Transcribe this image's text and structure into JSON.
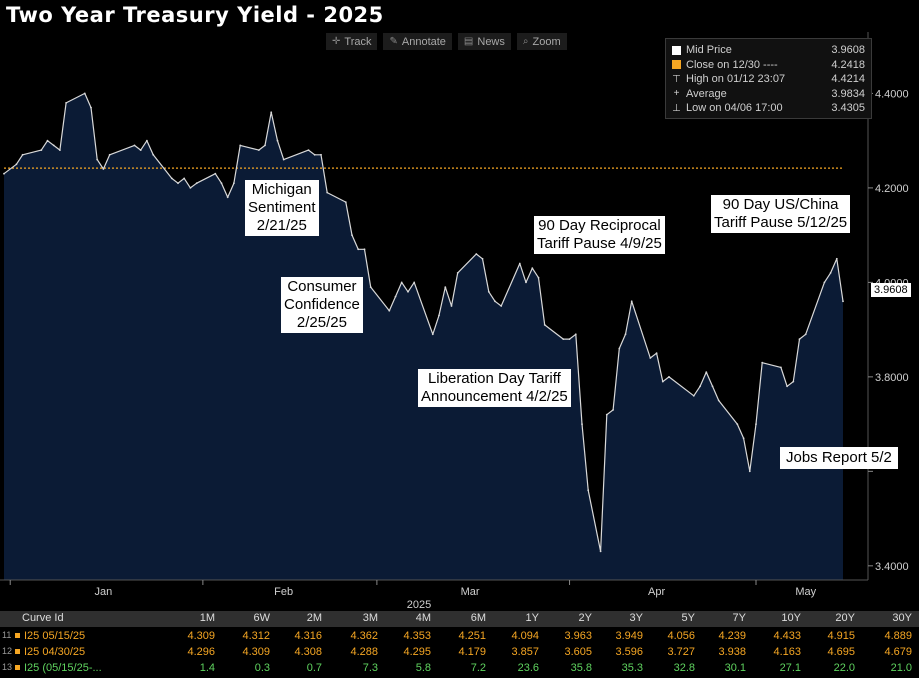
{
  "title": "Two Year Treasury Yield - 2025",
  "toolbar": [
    {
      "label": "Track",
      "icon": "crosshair-icon",
      "glyph": "✛"
    },
    {
      "label": "Annotate",
      "icon": "pencil-icon",
      "glyph": "✎"
    },
    {
      "label": "News",
      "icon": "news-icon",
      "glyph": "▤"
    },
    {
      "label": "Zoom",
      "icon": "magnifier-icon",
      "glyph": "⌕"
    }
  ],
  "legend": [
    {
      "label": "Mid Price",
      "value": "3.9608",
      "color": "#ffffff",
      "marker": "box"
    },
    {
      "label": "Close on 12/30 ----",
      "value": "4.2418",
      "color": "#f5a623",
      "marker": "box"
    },
    {
      "label": "High on 01/12 23:07",
      "value": "4.4214",
      "color": "#cfcfcf",
      "marker": "high"
    },
    {
      "label": "Average",
      "value": "3.9834",
      "color": "#cfcfcf",
      "marker": "avg"
    },
    {
      "label": "Low on 04/06 17:00",
      "value": "3.4305",
      "color": "#cfcfcf",
      "marker": "low"
    }
  ],
  "last_value_badge": "3.9608",
  "annotations": [
    {
      "id": "michigan",
      "lines": [
        "Michigan",
        "Sentiment",
        "2/21/25"
      ]
    },
    {
      "id": "consumer",
      "lines": [
        "Consumer",
        "Confidence",
        "2/25/25"
      ]
    },
    {
      "id": "liberation",
      "lines": [
        "Liberation Day Tariff",
        "Announcement 4/2/25"
      ]
    },
    {
      "id": "reciprocal",
      "lines": [
        "90 Day Reciprocal",
        "Tariff Pause 4/9/25"
      ]
    },
    {
      "id": "uschina",
      "lines": [
        "90 Day US/China",
        "Tariff Pause 5/12/25"
      ]
    },
    {
      "id": "jobs",
      "lines": [
        "Jobs Report 5/2"
      ]
    }
  ],
  "chart_data": {
    "type": "area",
    "title": "Two Year Treasury Yield - 2025",
    "x_label": "2025",
    "x_ticks": [
      "Jan",
      "Feb",
      "Mar",
      "Apr",
      "May"
    ],
    "y_ticks": [
      "4.4000",
      "4.2000",
      "4.0000",
      "3.8000",
      "3.4000"
    ],
    "y_unlabeled_ticks": [
      3.6
    ],
    "ylim": [
      3.37,
      4.53
    ],
    "reference_line": {
      "label": "Close on 12/30",
      "value": 4.2418,
      "color": "#f5a623"
    },
    "colors": {
      "fill": "#0b1b35",
      "line": "#d9d9d9"
    },
    "grid": false,
    "legend_position": "top-right",
    "series": [
      {
        "name": "Mid Price",
        "points": [
          [
            "2024-12-31",
            4.23
          ],
          [
            "2025-01-02",
            4.25
          ],
          [
            "2025-01-03",
            4.27
          ],
          [
            "2025-01-06",
            4.28
          ],
          [
            "2025-01-07",
            4.3
          ],
          [
            "2025-01-08",
            4.29
          ],
          [
            "2025-01-09",
            4.28
          ],
          [
            "2025-01-10",
            4.38
          ],
          [
            "2025-01-13",
            4.4
          ],
          [
            "2025-01-14",
            4.37
          ],
          [
            "2025-01-15",
            4.26
          ],
          [
            "2025-01-16",
            4.24
          ],
          [
            "2025-01-17",
            4.27
          ],
          [
            "2025-01-21",
            4.29
          ],
          [
            "2025-01-22",
            4.28
          ],
          [
            "2025-01-23",
            4.3
          ],
          [
            "2025-01-24",
            4.27
          ],
          [
            "2025-01-27",
            4.22
          ],
          [
            "2025-01-28",
            4.21
          ],
          [
            "2025-01-29",
            4.22
          ],
          [
            "2025-01-30",
            4.2
          ],
          [
            "2025-01-31",
            4.21
          ],
          [
            "2025-02-03",
            4.23
          ],
          [
            "2025-02-04",
            4.21
          ],
          [
            "2025-02-05",
            4.18
          ],
          [
            "2025-02-06",
            4.21
          ],
          [
            "2025-02-07",
            4.29
          ],
          [
            "2025-02-10",
            4.28
          ],
          [
            "2025-02-11",
            4.29
          ],
          [
            "2025-02-12",
            4.36
          ],
          [
            "2025-02-13",
            4.3
          ],
          [
            "2025-02-14",
            4.26
          ],
          [
            "2025-02-18",
            4.28
          ],
          [
            "2025-02-19",
            4.27
          ],
          [
            "2025-02-20",
            4.27
          ],
          [
            "2025-02-21",
            4.19
          ],
          [
            "2025-02-24",
            4.17
          ],
          [
            "2025-02-25",
            4.1
          ],
          [
            "2025-02-26",
            4.07
          ],
          [
            "2025-02-27",
            4.07
          ],
          [
            "2025-02-28",
            3.99
          ],
          [
            "2025-03-03",
            3.94
          ],
          [
            "2025-03-04",
            3.97
          ],
          [
            "2025-03-05",
            4.0
          ],
          [
            "2025-03-06",
            3.98
          ],
          [
            "2025-03-07",
            4.0
          ],
          [
            "2025-03-10",
            3.89
          ],
          [
            "2025-03-11",
            3.93
          ],
          [
            "2025-03-12",
            3.99
          ],
          [
            "2025-03-13",
            3.95
          ],
          [
            "2025-03-14",
            4.02
          ],
          [
            "2025-03-17",
            4.06
          ],
          [
            "2025-03-18",
            4.05
          ],
          [
            "2025-03-19",
            3.98
          ],
          [
            "2025-03-20",
            3.96
          ],
          [
            "2025-03-21",
            3.95
          ],
          [
            "2025-03-24",
            4.04
          ],
          [
            "2025-03-25",
            4.0
          ],
          [
            "2025-03-26",
            4.03
          ],
          [
            "2025-03-27",
            4.01
          ],
          [
            "2025-03-28",
            3.91
          ],
          [
            "2025-03-31",
            3.88
          ],
          [
            "2025-04-01",
            3.88
          ],
          [
            "2025-04-02",
            3.89
          ],
          [
            "2025-04-03",
            3.7
          ],
          [
            "2025-04-04",
            3.56
          ],
          [
            "2025-04-06",
            3.4305
          ],
          [
            "2025-04-07",
            3.72
          ],
          [
            "2025-04-08",
            3.73
          ],
          [
            "2025-04-09",
            3.86
          ],
          [
            "2025-04-10",
            3.89
          ],
          [
            "2025-04-11",
            3.96
          ],
          [
            "2025-04-14",
            3.84
          ],
          [
            "2025-04-15",
            3.85
          ],
          [
            "2025-04-16",
            3.79
          ],
          [
            "2025-04-17",
            3.8
          ],
          [
            "2025-04-21",
            3.76
          ],
          [
            "2025-04-22",
            3.78
          ],
          [
            "2025-04-23",
            3.81
          ],
          [
            "2025-04-24",
            3.78
          ],
          [
            "2025-04-25",
            3.75
          ],
          [
            "2025-04-28",
            3.7
          ],
          [
            "2025-04-29",
            3.67
          ],
          [
            "2025-04-30",
            3.6
          ],
          [
            "2025-05-01",
            3.7
          ],
          [
            "2025-05-02",
            3.83
          ],
          [
            "2025-05-05",
            3.82
          ],
          [
            "2025-05-06",
            3.78
          ],
          [
            "2025-05-07",
            3.79
          ],
          [
            "2025-05-08",
            3.88
          ],
          [
            "2025-05-09",
            3.89
          ],
          [
            "2025-05-12",
            4.0
          ],
          [
            "2025-05-13",
            4.02
          ],
          [
            "2025-05-14",
            4.05
          ],
          [
            "2025-05-15",
            3.96
          ]
        ]
      }
    ]
  },
  "table": {
    "headers": [
      "Curve Id",
      "1M",
      "6W",
      "2M",
      "3M",
      "4M",
      "6M",
      "1Y",
      "2Y",
      "3Y",
      "5Y",
      "7Y",
      "10Y",
      "20Y",
      "30Y"
    ],
    "rows": [
      {
        "prefix": "11",
        "prefix_color": "#f5a623",
        "color": "#f5a623",
        "cells": [
          "I25 05/15/25",
          "4.309",
          "4.312",
          "4.316",
          "4.362",
          "4.353",
          "4.251",
          "4.094",
          "3.963",
          "3.949",
          "4.056",
          "4.239",
          "4.433",
          "4.915",
          "4.889"
        ]
      },
      {
        "prefix": "12",
        "prefix_color": "#f5a623",
        "color": "#f5a623",
        "cells": [
          "I25 04/30/25",
          "4.296",
          "4.309",
          "4.308",
          "4.288",
          "4.295",
          "4.179",
          "3.857",
          "3.605",
          "3.596",
          "3.727",
          "3.938",
          "4.163",
          "4.695",
          "4.679"
        ]
      },
      {
        "prefix": "13",
        "prefix_color": "#f5a623",
        "color": "#5fd35f",
        "cells": [
          "I25 (05/15/25-...",
          "1.4",
          "0.3",
          "0.7",
          "7.3",
          "5.8",
          "7.2",
          "23.6",
          "35.8",
          "35.3",
          "32.8",
          "30.1",
          "27.1",
          "22.0",
          "21.0"
        ]
      }
    ]
  }
}
